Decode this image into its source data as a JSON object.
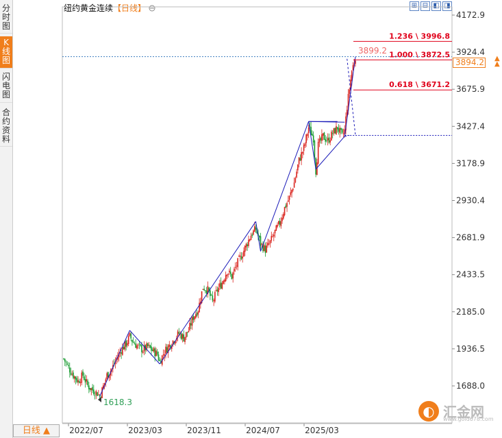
{
  "left_tabs": [
    "分时图",
    "K线图",
    "闪电图",
    "合约资料"
  ],
  "active_tab": "K线图",
  "title": {
    "name": "纽约黄金连续",
    "period": "【日线】",
    "settings_icon": "gear-icon"
  },
  "toolbar_icons": [
    "zoom-in-icon",
    "zoom-out-icon",
    "back-icon",
    "forward-icon",
    "fullscreen-icon"
  ],
  "bottom_tab": "日线 ▲",
  "current_price": "3894.2",
  "brand": {
    "name": "汇金网",
    "url": "www.gold678.com"
  },
  "chart_data": {
    "type": "candlestick",
    "title": "纽约黄金连续【日线】",
    "period": "daily",
    "y_axis": {
      "ticks": [
        "4172.9",
        "3924.4",
        "3675.9",
        "3427.4",
        "3178.9",
        "2930.4",
        "2681.9",
        "2433.5",
        "2185.0",
        "1936.5",
        "1688.0"
      ],
      "ylim": [
        1575,
        4215
      ]
    },
    "x_axis": {
      "ticks": [
        "2022/07",
        "2023/03",
        "2023/11",
        "2024/07",
        "2025/03"
      ]
    },
    "price_path": [
      [
        0,
        1870
      ],
      [
        4,
        1810
      ],
      [
        8,
        1760
      ],
      [
        12,
        1720
      ],
      [
        16,
        1760
      ],
      [
        20,
        1690
      ],
      [
        24,
        1660
      ],
      [
        28,
        1640
      ],
      [
        30,
        1618
      ],
      [
        32,
        1660
      ],
      [
        36,
        1760
      ],
      [
        40,
        1800
      ],
      [
        44,
        1870
      ],
      [
        48,
        1930
      ],
      [
        52,
        1970
      ],
      [
        55,
        2020
      ],
      [
        58,
        1980
      ],
      [
        62,
        1950
      ],
      [
        66,
        1930
      ],
      [
        70,
        1950
      ],
      [
        74,
        1925
      ],
      [
        78,
        1900
      ],
      [
        80,
        1850
      ],
      [
        84,
        1920
      ],
      [
        88,
        1960
      ],
      [
        92,
        2000
      ],
      [
        96,
        2040
      ],
      [
        100,
        2010
      ],
      [
        104,
        2060
      ],
      [
        108,
        2150
      ],
      [
        112,
        2200
      ],
      [
        116,
        2350
      ],
      [
        120,
        2330
      ],
      [
        124,
        2250
      ],
      [
        128,
        2330
      ],
      [
        132,
        2380
      ],
      [
        136,
        2460
      ],
      [
        140,
        2420
      ],
      [
        144,
        2500
      ],
      [
        148,
        2560
      ],
      [
        152,
        2630
      ],
      [
        156,
        2700
      ],
      [
        160,
        2740
      ],
      [
        164,
        2640
      ],
      [
        168,
        2600
      ],
      [
        172,
        2650
      ],
      [
        176,
        2720
      ],
      [
        180,
        2780
      ],
      [
        184,
        2880
      ],
      [
        188,
        2950
      ],
      [
        192,
        3050
      ],
      [
        196,
        3200
      ],
      [
        200,
        3280
      ],
      [
        204,
        3420
      ],
      [
        208,
        3350
      ],
      [
        210,
        3130
      ],
      [
        212,
        3300
      ],
      [
        216,
        3360
      ],
      [
        220,
        3330
      ],
      [
        224,
        3380
      ],
      [
        228,
        3420
      ],
      [
        232,
        3360
      ],
      [
        234,
        3400
      ],
      [
        236,
        3560
      ],
      [
        240,
        3800
      ],
      [
        243,
        3894
      ]
    ],
    "pivots": [
      {
        "t": 30,
        "price": 1618
      },
      {
        "t": 55,
        "price": 2060
      },
      {
        "t": 80,
        "price": 1835
      },
      {
        "t": 160,
        "price": 2790
      },
      {
        "t": 164,
        "price": 2590
      },
      {
        "t": 204,
        "price": 3460
      },
      {
        "t": 228,
        "price": 3460
      },
      {
        "t": 210,
        "price": 3140
      },
      {
        "t": 234,
        "price": 3360
      },
      {
        "t": 243,
        "price": 3894
      }
    ],
    "labels": {
      "low": "1618.3",
      "high": "3899.2"
    },
    "fibonacci": [
      {
        "ratio": "1.236",
        "price": 3996.8,
        "label": "1.236 \\ 3996.8"
      },
      {
        "ratio": "1.000",
        "price": 3872.5,
        "label": "1.000 \\ 3872.5"
      },
      {
        "ratio": "0.618",
        "price": 3671.2,
        "label": "0.618 \\ 3671.2"
      }
    ],
    "dotted_levels": [
      3894.2,
      3367.0
    ],
    "colors": {
      "up": "#d9211b",
      "down": "#159a2e",
      "trend": "#1a1ab8",
      "fib": "#e0001a",
      "grid": "#3a7bbf"
    }
  }
}
